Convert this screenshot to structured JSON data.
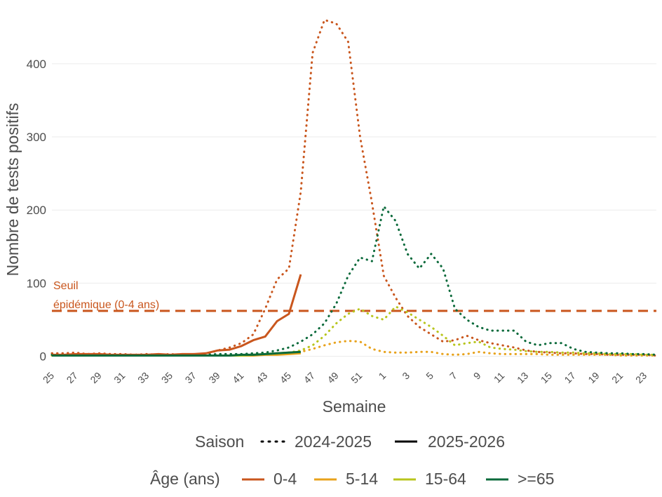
{
  "chart_data": {
    "type": "line",
    "xlabel": "Semaine",
    "ylabel": "Nombre de tests positifs",
    "ylim": [
      -12,
      470
    ],
    "yticks": [
      0,
      100,
      200,
      300,
      400
    ],
    "grid": true,
    "x_categories": [
      "25",
      "26",
      "27",
      "28",
      "29",
      "30",
      "31",
      "32",
      "33",
      "34",
      "35",
      "36",
      "37",
      "38",
      "39",
      "40",
      "41",
      "42",
      "43",
      "44",
      "45",
      "46",
      "47",
      "48",
      "49",
      "50",
      "51",
      "52",
      "1",
      "2",
      "3",
      "4",
      "5",
      "6",
      "7",
      "8",
      "9",
      "10",
      "11",
      "12",
      "13",
      "14",
      "15",
      "16",
      "17",
      "18",
      "19",
      "20",
      "21",
      "22",
      "23",
      "24"
    ],
    "x_tick_labels": [
      "25",
      "27",
      "29",
      "31",
      "33",
      "35",
      "37",
      "39",
      "41",
      "43",
      "45",
      "47",
      "49",
      "51",
      "1",
      "3",
      "5",
      "7",
      "9",
      "11",
      "13",
      "15",
      "17",
      "19",
      "21",
      "23"
    ],
    "threshold": {
      "value": 62,
      "label_line1": "Seuil",
      "label_line2": "épidémique (0-4 ans)",
      "color": "#c9561d"
    },
    "legend_season": {
      "title": "Saison",
      "items": [
        "2024-2025",
        "2025-2026"
      ]
    },
    "legend_age": {
      "title": "Âge (ans)",
      "items": [
        "0-4",
        "5-14",
        "15-64",
        ">=65"
      ]
    },
    "legend_placement": "bottom",
    "colors": {
      "0-4": "#c9561d",
      "5-14": "#e8a21b",
      "15-64": "#b8c51d",
      ">=65": "#0b6a3b"
    },
    "series": [
      {
        "season": "2024-2025",
        "age": "0-4",
        "values": [
          4,
          4,
          5,
          3,
          4,
          3,
          3,
          2,
          3,
          2,
          3,
          2,
          3,
          3,
          8,
          12,
          18,
          30,
          65,
          105,
          120,
          225,
          415,
          460,
          455,
          430,
          300,
          210,
          110,
          80,
          55,
          40,
          30,
          20,
          22,
          28,
          22,
          18,
          15,
          12,
          8,
          6,
          5,
          4,
          4,
          3,
          3,
          2,
          2,
          2,
          2,
          1
        ]
      },
      {
        "season": "2024-2025",
        "age": "5-14",
        "values": [
          1,
          1,
          1,
          1,
          1,
          1,
          1,
          1,
          1,
          1,
          1,
          1,
          1,
          1,
          1,
          1,
          2,
          2,
          3,
          4,
          5,
          6,
          10,
          15,
          19,
          21,
          20,
          10,
          6,
          5,
          5,
          6,
          6,
          3,
          2,
          3,
          6,
          4,
          3,
          3,
          3,
          3,
          2,
          2,
          2,
          2,
          2,
          2,
          1,
          1,
          1,
          1
        ]
      },
      {
        "season": "2024-2025",
        "age": "15-64",
        "values": [
          1,
          1,
          1,
          1,
          1,
          1,
          1,
          1,
          1,
          1,
          1,
          1,
          1,
          1,
          1,
          1,
          1,
          2,
          2,
          3,
          5,
          8,
          15,
          28,
          45,
          58,
          65,
          55,
          50,
          68,
          60,
          50,
          40,
          28,
          15,
          18,
          20,
          12,
          10,
          9,
          7,
          6,
          6,
          5,
          5,
          4,
          4,
          3,
          3,
          3,
          2,
          2
        ]
      },
      {
        "season": "2024-2025",
        "age": ">=65",
        "values": [
          2,
          2,
          2,
          2,
          2,
          2,
          2,
          2,
          2,
          2,
          2,
          2,
          2,
          2,
          3,
          3,
          3,
          4,
          5,
          8,
          12,
          20,
          30,
          45,
          72,
          110,
          135,
          130,
          205,
          185,
          140,
          120,
          140,
          120,
          65,
          50,
          40,
          35,
          35,
          35,
          20,
          15,
          18,
          18,
          10,
          6,
          5,
          4,
          4,
          3,
          3,
          2
        ]
      },
      {
        "season": "2025-2026",
        "age": "0-4",
        "values": [
          2,
          2,
          3,
          3,
          3,
          2,
          2,
          2,
          2,
          3,
          2,
          3,
          3,
          4,
          8,
          9,
          14,
          22,
          27,
          48,
          58,
          112
        ]
      },
      {
        "season": "2025-2026",
        "age": "5-14",
        "values": [
          1,
          1,
          1,
          1,
          1,
          1,
          1,
          1,
          1,
          1,
          1,
          1,
          1,
          1,
          1,
          1,
          1,
          1,
          2,
          2,
          3,
          4
        ]
      },
      {
        "season": "2025-2026",
        "age": "15-64",
        "values": [
          1,
          1,
          1,
          1,
          1,
          1,
          1,
          1,
          1,
          1,
          1,
          1,
          1,
          1,
          1,
          1,
          1,
          2,
          3,
          4,
          5,
          6
        ]
      },
      {
        "season": "2025-2026",
        "age": ">=65",
        "values": [
          1,
          1,
          1,
          1,
          1,
          1,
          1,
          1,
          1,
          1,
          1,
          1,
          1,
          1,
          1,
          1,
          2,
          2,
          3,
          4,
          5,
          6
        ]
      }
    ]
  }
}
